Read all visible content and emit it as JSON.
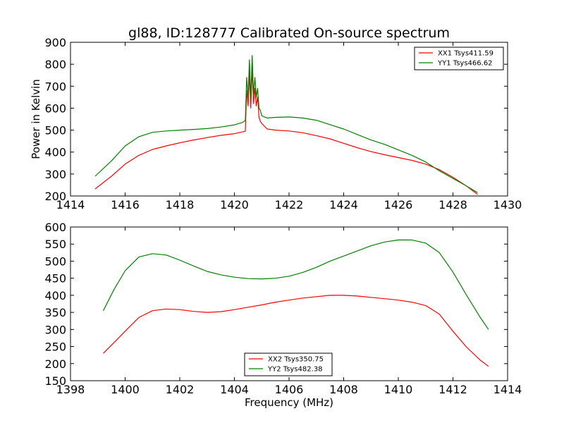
{
  "chart_data": [
    {
      "type": "line",
      "title": "gl88, ID:128777 Calibrated On-source spectrum",
      "xlabel": "",
      "ylabel": "Power in Kelvin",
      "xlim": [
        1414,
        1430
      ],
      "ylim": [
        200,
        900
      ],
      "xticks": [
        1414,
        1416,
        1418,
        1420,
        1422,
        1424,
        1426,
        1428,
        1430
      ],
      "yticks": [
        200,
        300,
        400,
        500,
        600,
        700,
        800,
        900
      ],
      "legend_position": "top-right",
      "series": [
        {
          "name": "XX1 Tsys411.59",
          "color": "#ff0000",
          "x": [
            1414.9,
            1415.5,
            1416.0,
            1416.5,
            1417.0,
            1417.5,
            1418.0,
            1418.5,
            1419.0,
            1419.5,
            1420.0,
            1420.3,
            1420.4,
            1420.45,
            1420.5,
            1420.55,
            1420.6,
            1420.65,
            1420.7,
            1420.75,
            1420.8,
            1420.85,
            1420.9,
            1420.95,
            1421.0,
            1421.2,
            1421.5,
            1422.0,
            1422.5,
            1423.0,
            1423.5,
            1424.0,
            1424.5,
            1425.0,
            1425.5,
            1426.0,
            1426.5,
            1427.0,
            1427.5,
            1428.0,
            1428.5,
            1428.9
          ],
          "y": [
            232,
            290,
            345,
            385,
            412,
            428,
            442,
            455,
            466,
            476,
            484,
            492,
            495,
            680,
            610,
            760,
            600,
            780,
            620,
            690,
            610,
            650,
            560,
            540,
            530,
            505,
            500,
            496,
            488,
            475,
            460,
            440,
            420,
            402,
            388,
            375,
            362,
            345,
            320,
            285,
            245,
            207
          ]
        },
        {
          "name": "YY1 Tsys466.62",
          "color": "#008000",
          "x": [
            1414.9,
            1415.5,
            1416.0,
            1416.5,
            1417.0,
            1417.5,
            1418.0,
            1418.5,
            1419.0,
            1419.5,
            1420.0,
            1420.3,
            1420.4,
            1420.45,
            1420.5,
            1420.55,
            1420.6,
            1420.65,
            1420.7,
            1420.75,
            1420.8,
            1420.85,
            1420.9,
            1420.95,
            1421.0,
            1421.2,
            1421.5,
            1422.0,
            1422.5,
            1423.0,
            1423.5,
            1424.0,
            1424.5,
            1425.0,
            1425.5,
            1426.0,
            1426.5,
            1427.0,
            1427.5,
            1428.0,
            1428.5,
            1428.9
          ],
          "y": [
            290,
            360,
            428,
            470,
            490,
            496,
            500,
            503,
            507,
            514,
            524,
            535,
            545,
            740,
            650,
            820,
            640,
            840,
            660,
            740,
            650,
            690,
            600,
            590,
            565,
            555,
            558,
            560,
            555,
            545,
            525,
            505,
            480,
            455,
            435,
            410,
            385,
            355,
            315,
            280,
            245,
            215
          ]
        }
      ]
    },
    {
      "type": "line",
      "title": "",
      "xlabel": "Frequency (MHz)",
      "ylabel": "",
      "xlim": [
        1398,
        1414
      ],
      "ylim": [
        150,
        600
      ],
      "xticks": [
        1398,
        1400,
        1402,
        1404,
        1406,
        1408,
        1410,
        1412,
        1414
      ],
      "yticks": [
        150,
        200,
        250,
        300,
        350,
        400,
        450,
        500,
        550,
        600
      ],
      "legend_position": "bottom-center",
      "series": [
        {
          "name": "XX2 Tsys350.75",
          "color": "#ff0000",
          "x": [
            1399.2,
            1399.6,
            1400.0,
            1400.5,
            1401.0,
            1401.5,
            1402.0,
            1402.5,
            1403.0,
            1403.5,
            1404.0,
            1404.5,
            1405.0,
            1405.5,
            1406.0,
            1406.5,
            1407.0,
            1407.5,
            1408.0,
            1408.5,
            1409.0,
            1409.5,
            1410.0,
            1410.5,
            1411.0,
            1411.5,
            1412.0,
            1412.5,
            1413.0,
            1413.3
          ],
          "y": [
            230,
            262,
            295,
            335,
            355,
            360,
            358,
            353,
            350,
            352,
            358,
            365,
            372,
            380,
            386,
            392,
            396,
            400,
            400,
            398,
            394,
            390,
            386,
            380,
            370,
            345,
            295,
            248,
            210,
            192
          ]
        },
        {
          "name": "YY2 Tsys482.38",
          "color": "#008000",
          "x": [
            1399.2,
            1399.6,
            1400.0,
            1400.5,
            1401.0,
            1401.5,
            1402.0,
            1402.5,
            1403.0,
            1403.5,
            1404.0,
            1404.5,
            1405.0,
            1405.5,
            1406.0,
            1406.5,
            1407.0,
            1407.5,
            1408.0,
            1408.5,
            1409.0,
            1409.5,
            1410.0,
            1410.5,
            1411.0,
            1411.5,
            1412.0,
            1412.5,
            1413.0,
            1413.3
          ],
          "y": [
            355,
            418,
            472,
            512,
            522,
            518,
            503,
            486,
            470,
            460,
            453,
            449,
            448,
            450,
            456,
            467,
            482,
            500,
            515,
            530,
            545,
            556,
            562,
            562,
            553,
            525,
            468,
            400,
            335,
            300
          ]
        }
      ]
    }
  ]
}
